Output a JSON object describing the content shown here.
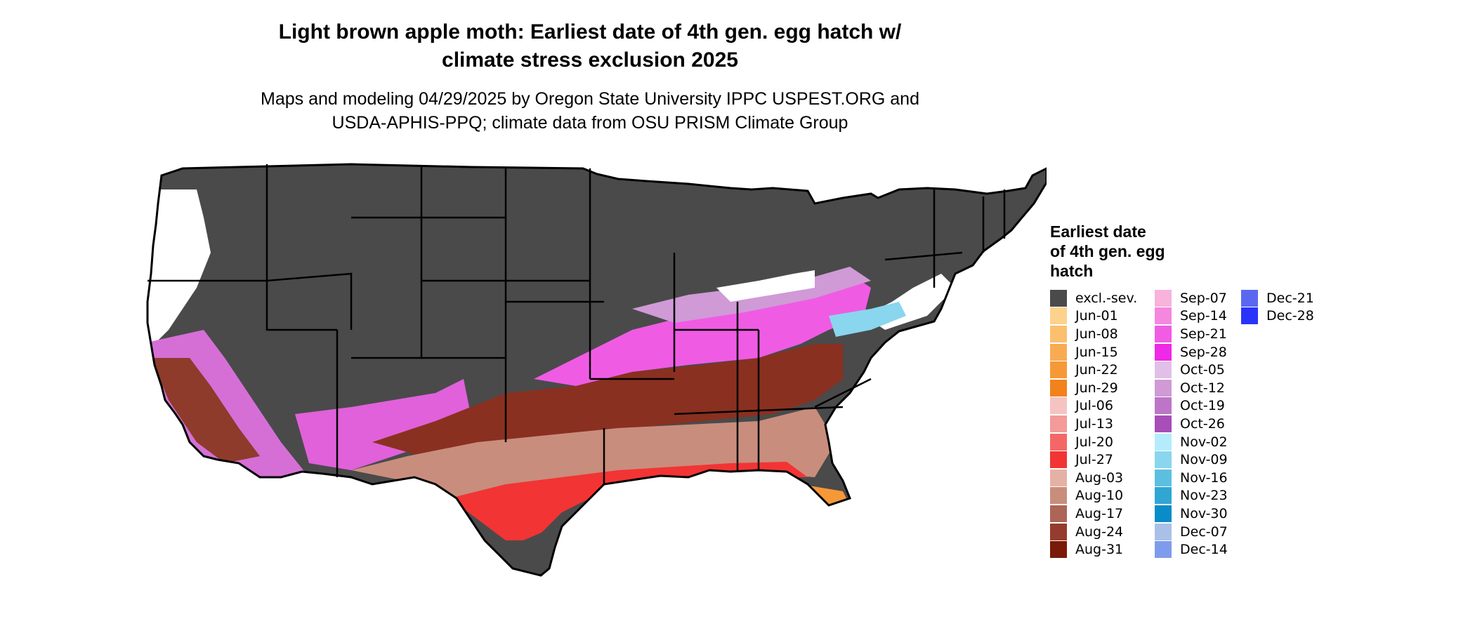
{
  "title_line1": "Light brown apple moth: Earliest date of 4th gen. egg hatch w/",
  "title_line2": "climate stress exclusion 2025",
  "subtitle_line1": "Maps and modeling 04/29/2025 by Oregon State University IPPC USPEST.ORG and",
  "subtitle_line2": "USDA-APHIS-PPQ; climate data from OSU PRISM Climate Group",
  "legend": {
    "title_line1": "Earliest date",
    "title_line2": "of 4th gen. egg",
    "title_line3": "hatch",
    "columns": [
      [
        {
          "label": "excl.-sev.",
          "color": "#4a4a4a"
        },
        {
          "label": "Jun-01",
          "color": "#fdd28c"
        },
        {
          "label": "Jun-08",
          "color": "#fbbf6e"
        },
        {
          "label": "Jun-15",
          "color": "#f9ab54"
        },
        {
          "label": "Jun-22",
          "color": "#f79838"
        },
        {
          "label": "Jun-29",
          "color": "#f2821c"
        },
        {
          "label": "Jul-06",
          "color": "#f6c3c3"
        },
        {
          "label": "Jul-13",
          "color": "#f39a9a"
        },
        {
          "label": "Jul-20",
          "color": "#f46767"
        },
        {
          "label": "Jul-27",
          "color": "#f23434"
        },
        {
          "label": "Aug-03",
          "color": "#e6b1a5"
        },
        {
          "label": "Aug-10",
          "color": "#c98d7d"
        },
        {
          "label": "Aug-17",
          "color": "#ad6555"
        },
        {
          "label": "Aug-24",
          "color": "#943c2d"
        },
        {
          "label": "Aug-31",
          "color": "#7a1a08"
        }
      ],
      [
        {
          "label": "Sep-07",
          "color": "#f8b2dc"
        },
        {
          "label": "Sep-14",
          "color": "#f587df"
        },
        {
          "label": "Sep-21",
          "color": "#f25be4"
        },
        {
          "label": "Sep-28",
          "color": "#f028e8"
        },
        {
          "label": "Oct-05",
          "color": "#e0c0e6"
        },
        {
          "label": "Oct-12",
          "color": "#cf9ad6"
        },
        {
          "label": "Oct-19",
          "color": "#bd75c8"
        },
        {
          "label": "Oct-26",
          "color": "#a84eb8"
        },
        {
          "label": "Nov-02",
          "color": "#b4ecfc"
        },
        {
          "label": "Nov-09",
          "color": "#89d6ee"
        },
        {
          "label": "Nov-16",
          "color": "#5cbfe0"
        },
        {
          "label": "Nov-23",
          "color": "#30a6d4"
        },
        {
          "label": "Nov-30",
          "color": "#0a8cc8"
        },
        {
          "label": "Dec-07",
          "color": "#a9c1e8"
        },
        {
          "label": "Dec-14",
          "color": "#7f9cec"
        }
      ],
      [
        {
          "label": "Dec-21",
          "color": "#5a68f0"
        },
        {
          "label": "Dec-28",
          "color": "#2a33fc"
        }
      ]
    ]
  }
}
